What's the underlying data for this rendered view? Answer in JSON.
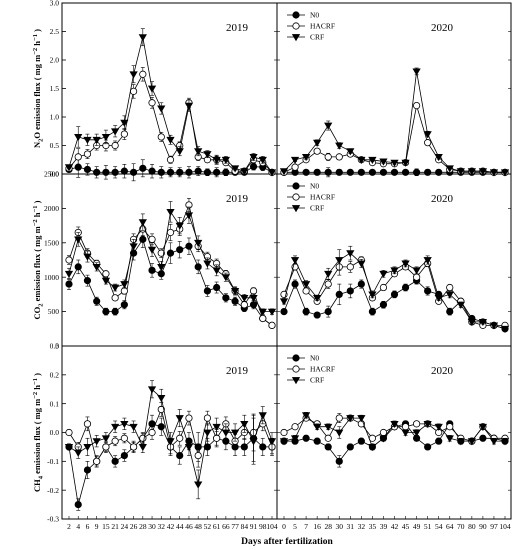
{
  "xlabel": "Days after fertilization",
  "series_names": [
    "N0",
    "HACRF",
    "CRF"
  ],
  "legend_panels": [
    "n2o-2020",
    "co2-2020",
    "ch4-2020"
  ],
  "colors": {
    "line": "#000000",
    "hollow": "#ffffff"
  },
  "x_2019": [
    2,
    4,
    6,
    9,
    15,
    21,
    24,
    26,
    28,
    30,
    32,
    42,
    44,
    46,
    48,
    52,
    61,
    66,
    77,
    84,
    91,
    98,
    104
  ],
  "x_2020": [
    0,
    5,
    7,
    16,
    28,
    30,
    31,
    32,
    35,
    39,
    42,
    45,
    49,
    51,
    54,
    64,
    70,
    80,
    90,
    97,
    104
  ],
  "chart_data": [
    {
      "id": "n2o-2019",
      "type": "line",
      "year": "2019",
      "ylabel_main": "N",
      "ylabel_sub1": "2",
      "ylabel_mid": "O emission flux ( mg m",
      "ylabel_sup": "−2",
      "ylabel_end": " h",
      "ylabel_sup2": "−1",
      "ylabel_close": " )",
      "ylim": [
        0,
        3.0
      ],
      "yticks": [
        "0.0",
        "0.5",
        "1.0",
        "1.5",
        "2.0",
        "2.5",
        "3.0"
      ],
      "y_tick_values": [
        0,
        0.5,
        1.0,
        1.5,
        2.0,
        2.5,
        3.0
      ],
      "series": [
        {
          "name": "N0",
          "values": [
            0.08,
            0.12,
            0.08,
            0.03,
            0.03,
            0.03,
            0.05,
            0.03,
            0.1,
            0.05,
            0.03,
            0.03,
            0.03,
            0.03,
            0.05,
            0.03,
            0.03,
            0.03,
            0.03,
            0.03,
            0.13,
            0.12,
            0.03
          ]
        },
        {
          "name": "HACRF",
          "values": [
            0.1,
            0.3,
            0.35,
            0.5,
            0.5,
            0.5,
            0.7,
            1.45,
            1.75,
            1.25,
            0.65,
            0.25,
            0.5,
            1.25,
            0.3,
            0.25,
            0.25,
            0.2,
            0.05,
            0.05,
            0.25,
            0.2,
            0.03
          ]
        },
        {
          "name": "CRF",
          "values": [
            0.12,
            0.65,
            0.6,
            0.6,
            0.65,
            0.75,
            0.9,
            1.75,
            2.4,
            1.5,
            1.15,
            0.6,
            0.4,
            1.2,
            0.4,
            0.35,
            0.25,
            0.25,
            0.1,
            0.05,
            0.3,
            0.25,
            0.03
          ]
        }
      ],
      "errors": [
        0.03,
        0.18,
        0.1,
        0.1,
        0.12,
        0.1,
        0.12,
        0.15,
        0.15,
        0.12,
        0.1,
        0.08,
        0.08,
        0.1,
        0.08,
        0.06,
        0.08,
        0.06,
        0.03,
        0.03,
        0.06,
        0.06,
        0.02
      ]
    },
    {
      "id": "n2o-2020",
      "type": "line",
      "year": "2020",
      "ylim": [
        0,
        3.0
      ],
      "series": [
        {
          "name": "N0",
          "values": [
            0.03,
            0.03,
            0.03,
            0.03,
            0.03,
            0.03,
            0.03,
            0.03,
            0.03,
            0.03,
            0.03,
            0.03,
            0.03,
            0.03,
            0.03,
            0.03,
            0.03,
            0.03,
            0.03,
            0.03,
            0.03
          ]
        },
        {
          "name": "HACRF",
          "values": [
            0.03,
            0.12,
            0.25,
            0.4,
            0.3,
            0.3,
            0.35,
            0.25,
            0.2,
            0.18,
            0.18,
            0.2,
            1.2,
            0.55,
            0.25,
            0.08,
            0.05,
            0.05,
            0.05,
            0.03,
            0.03
          ]
        },
        {
          "name": "CRF",
          "values": [
            0.05,
            0.25,
            0.3,
            0.55,
            0.85,
            0.5,
            0.4,
            0.25,
            0.25,
            0.22,
            0.2,
            0.2,
            1.8,
            0.7,
            0.3,
            0.1,
            0.05,
            0.05,
            0.05,
            0.03,
            0.03
          ]
        }
      ],
      "errors": [
        0.02,
        0.03,
        0.04,
        0.05,
        0.08,
        0.05,
        0.04,
        0.03,
        0.03,
        0.03,
        0.03,
        0.03,
        0.06,
        0.05,
        0.04,
        0.02,
        0.02,
        0.02,
        0.02,
        0.02,
        0.02
      ]
    },
    {
      "id": "co2-2019",
      "type": "line",
      "year": "2019",
      "ylabel_main": "CO",
      "ylabel_sub1": "2",
      "ylabel_mid": " emission flux ( mg m",
      "ylabel_sup": "−2",
      "ylabel_end": " h",
      "ylabel_sup2": "−1",
      "ylabel_close": " )",
      "ylim": [
        0,
        2500
      ],
      "yticks": [
        "0",
        "500",
        "1000",
        "1500",
        "2000",
        "2500"
      ],
      "y_tick_values": [
        0,
        500,
        1000,
        1500,
        2000,
        2500
      ],
      "series": [
        {
          "name": "N0",
          "values": [
            900,
            1150,
            950,
            650,
            500,
            500,
            600,
            1350,
            1550,
            1100,
            1050,
            1350,
            1400,
            1450,
            1150,
            800,
            850,
            700,
            650,
            550,
            600,
            400,
            300
          ]
        },
        {
          "name": "HACRF",
          "values": [
            1250,
            1650,
            1350,
            1200,
            1050,
            700,
            800,
            1550,
            1700,
            1550,
            1350,
            1650,
            1700,
            2050,
            1450,
            1300,
            1200,
            1050,
            800,
            600,
            800,
            400,
            300
          ]
        },
        {
          "name": "CRF",
          "values": [
            1050,
            1550,
            1300,
            1150,
            950,
            850,
            900,
            1450,
            1800,
            1400,
            1150,
            1950,
            1750,
            1900,
            1500,
            1200,
            1100,
            1000,
            800,
            700,
            700,
            500,
            500
          ]
        }
      ],
      "errors": [
        80,
        100,
        80,
        60,
        50,
        50,
        60,
        100,
        120,
        100,
        80,
        150,
        120,
        120,
        100,
        80,
        80,
        60,
        60,
        50,
        60,
        40,
        40
      ]
    },
    {
      "id": "co2-2020",
      "type": "line",
      "year": "2020",
      "ylim": [
        0,
        2500
      ],
      "series": [
        {
          "name": "N0",
          "values": [
            500,
            900,
            500,
            450,
            500,
            750,
            800,
            900,
            500,
            600,
            750,
            850,
            950,
            800,
            750,
            500,
            650,
            400,
            350,
            300,
            250
          ]
        },
        {
          "name": "HACRF",
          "values": [
            750,
            1150,
            800,
            650,
            900,
            1150,
            1150,
            1250,
            700,
            850,
            1050,
            1150,
            1000,
            1200,
            650,
            850,
            650,
            350,
            300,
            300,
            300
          ]
        },
        {
          "name": "CRF",
          "values": [
            650,
            1250,
            900,
            700,
            1050,
            1250,
            1350,
            1200,
            750,
            1050,
            1100,
            1200,
            1100,
            1250,
            700,
            750,
            600,
            350,
            350,
            300,
            250
          ]
        }
      ],
      "errors": [
        40,
        60,
        50,
        40,
        80,
        150,
        100,
        60,
        50,
        50,
        50,
        50,
        50,
        60,
        40,
        50,
        40,
        30,
        30,
        30,
        30
      ]
    },
    {
      "id": "ch4-2019",
      "type": "line",
      "year": "2019",
      "ylabel_main": "CH",
      "ylabel_sub1": "4",
      "ylabel_mid": " emission flux ( mg m",
      "ylabel_sup": "−2",
      "ylabel_end": " h",
      "ylabel_sup2": "−1",
      "ylabel_close": " )",
      "ylim": [
        -0.3,
        0.3
      ],
      "yticks": [
        "-0.3",
        "-0.2",
        "-0.1",
        "0.0",
        "0.1",
        "0.2",
        "0.3"
      ],
      "y_tick_values": [
        -0.3,
        -0.2,
        -0.1,
        0,
        0.1,
        0.2,
        0.3
      ],
      "series": [
        {
          "name": "N0",
          "values": [
            -0.05,
            -0.25,
            -0.13,
            -0.1,
            -0.05,
            -0.1,
            -0.08,
            -0.05,
            -0.02,
            0.03,
            0.02,
            -0.05,
            -0.08,
            -0.03,
            -0.05,
            -0.05,
            -0.02,
            -0.03,
            -0.05,
            -0.05,
            -0.02,
            -0.05,
            -0.05
          ]
        },
        {
          "name": "HACRF",
          "values": [
            0,
            -0.05,
            0.03,
            -0.1,
            -0.05,
            -0.03,
            -0.02,
            -0.05,
            -0.02,
            0,
            0.08,
            -0.05,
            -0.02,
            0.05,
            -0.08,
            0.05,
            -0.02,
            0.03,
            -0.03,
            0,
            0,
            0.03,
            -0.05
          ]
        },
        {
          "name": "CRF",
          "values": [
            -0.05,
            -0.07,
            -0.05,
            -0.03,
            -0.02,
            0.02,
            0.03,
            0.02,
            -0.05,
            0.15,
            0.12,
            -0.03,
            0.05,
            -0.05,
            -0.18,
            0,
            0.02,
            0,
            0,
            0.03,
            -0.03,
            0.06,
            -0.03
          ]
        }
      ],
      "errors": [
        0.01,
        0.02,
        0.03,
        0.02,
        0.02,
        0.02,
        0.02,
        0.02,
        0.02,
        0.03,
        0.03,
        0.03,
        0.03,
        0.03,
        0.05,
        0.03,
        0.03,
        0.03,
        0.03,
        0.03,
        0.08,
        0.03,
        0.03
      ]
    },
    {
      "id": "ch4-2020",
      "type": "line",
      "year": "2020",
      "ylim": [
        -0.3,
        0.3
      ],
      "series": [
        {
          "name": "N0",
          "values": [
            -0.03,
            -0.03,
            -0.02,
            -0.03,
            -0.05,
            -0.1,
            -0.05,
            -0.03,
            -0.05,
            -0.02,
            0.02,
            0.03,
            -0.02,
            -0.05,
            -0.03,
            0.03,
            -0.03,
            -0.03,
            -0.02,
            -0.02,
            -0.03
          ]
        },
        {
          "name": "HACRF",
          "values": [
            0,
            0.02,
            0.05,
            0.03,
            -0.02,
            0.05,
            0.05,
            0.03,
            -0.02,
            0,
            0.02,
            0.02,
            0.03,
            0.03,
            0,
            0.02,
            -0.02,
            -0.03,
            0.02,
            -0.02,
            -0.02
          ]
        },
        {
          "name": "CRF",
          "values": [
            -0.03,
            -0.02,
            0.06,
            0.02,
            0.02,
            0,
            0.05,
            0.05,
            -0.05,
            -0.02,
            0.03,
            0,
            0,
            0.03,
            0.02,
            -0.02,
            -0.03,
            -0.03,
            0.02,
            -0.03,
            -0.03
          ]
        }
      ],
      "errors": [
        0.01,
        0.01,
        0.01,
        0.01,
        0.01,
        0.02,
        0.01,
        0.01,
        0.01,
        0.01,
        0.01,
        0.01,
        0.01,
        0.01,
        0.01,
        0.01,
        0.01,
        0.01,
        0.01,
        0.01,
        0.01
      ]
    }
  ]
}
